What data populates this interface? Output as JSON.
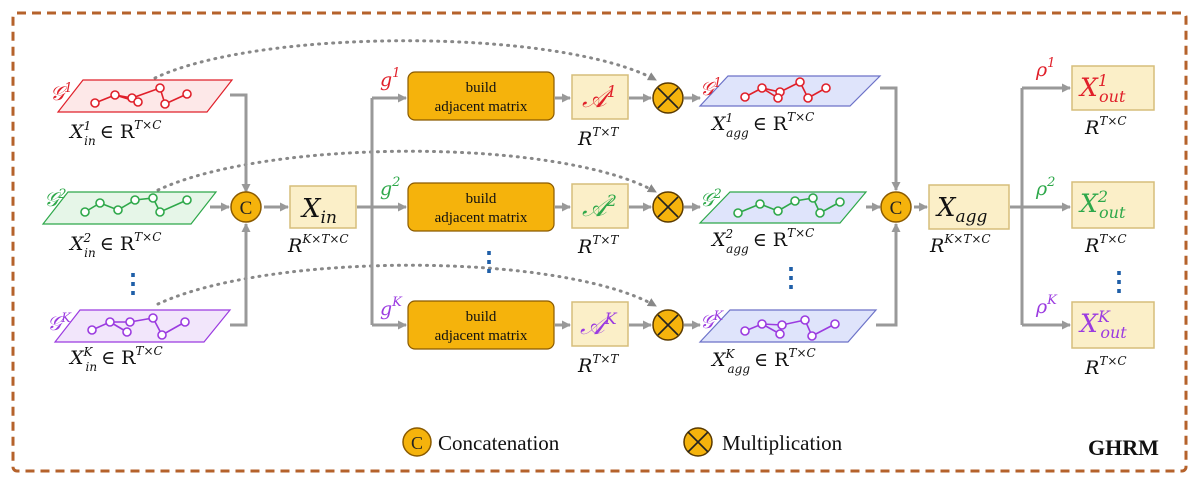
{
  "colors": {
    "frame": "#b5622b",
    "orange": "#f5b30c",
    "orange_stroke": "#b07a00",
    "cream": "#fbefc8",
    "cream_stroke": "#d6be7a",
    "arrow": "#999999",
    "dots": "#1f5fa8",
    "red": "#e0202a",
    "green": "#2ea84a",
    "purple": "#9b3be0",
    "blue_plane": "#dfe4fb"
  },
  "inputs": {
    "items": [
      {
        "graph": "𝒢",
        "sup": "1",
        "label": "X",
        "label_sub": "in",
        "label_sup": "1",
        "space": "∈ R",
        "space_sup": "T×C"
      },
      {
        "graph": "𝒢",
        "sup": "2",
        "label": "X",
        "label_sub": "in",
        "label_sup": "2",
        "space": "∈ R",
        "space_sup": "T×C"
      },
      {
        "graph": "𝒢",
        "sup": "K",
        "label": "X",
        "label_sub": "in",
        "label_sup": "K",
        "space": "∈ R",
        "space_sup": "T×C"
      }
    ],
    "ellipsis": "⋮"
  },
  "concat_symbol": "C",
  "mult_symbol": "⊗",
  "xin": {
    "label": "X",
    "sub": "in",
    "space": "R",
    "space_sup": "K×T×C"
  },
  "branches": [
    {
      "g": "g",
      "g_sup": "1",
      "build_line1": "build",
      "build_line2": "adjacent matrix",
      "A": "𝒜",
      "A_sup": "1",
      "A_space": "R",
      "A_space_sup": "T×T",
      "agg_graph": "𝒢",
      "agg_sup": "1",
      "agg_label": "X",
      "agg_sub": "agg",
      "agg_label_sup": "1",
      "agg_space": "∈ R",
      "agg_space_sup": "T×C"
    },
    {
      "g": "g",
      "g_sup": "2",
      "build_line1": "build",
      "build_line2": "adjacent matrix",
      "A": "𝒜",
      "A_sup": "2",
      "A_space": "R",
      "A_space_sup": "T×T",
      "agg_graph": "𝒢",
      "agg_sup": "2",
      "agg_label": "X",
      "agg_sub": "agg",
      "agg_label_sup": "2",
      "agg_space": "∈ R",
      "agg_space_sup": "T×C"
    },
    {
      "g": "g",
      "g_sup": "K",
      "build_line1": "build",
      "build_line2": "adjacent matrix",
      "A": "𝒜",
      "A_sup": "K",
      "A_space": "R",
      "A_space_sup": "T×T",
      "agg_graph": "𝒢",
      "agg_sup": "K",
      "agg_label": "X",
      "agg_sub": "agg",
      "agg_label_sup": "K",
      "agg_space": "∈ R",
      "agg_space_sup": "T×C"
    }
  ],
  "xagg": {
    "label": "X",
    "sub": "agg",
    "space": "R",
    "space_sup": "K×T×C"
  },
  "outputs": [
    {
      "rho": "ρ",
      "rho_sup": "1",
      "label": "X",
      "sub": "out",
      "sup": "1",
      "space": "R",
      "space_sup": "T×C"
    },
    {
      "rho": "ρ",
      "rho_sup": "2",
      "label": "X",
      "sub": "out",
      "sup": "2",
      "space": "R",
      "space_sup": "T×C"
    },
    {
      "rho": "ρ",
      "rho_sup": "K",
      "label": "X",
      "sub": "out",
      "sup": "K",
      "space": "R",
      "space_sup": "T×C"
    }
  ],
  "legend": {
    "concat": "Concatenation",
    "mult": "Multiplication"
  },
  "module_name": "GHRM"
}
